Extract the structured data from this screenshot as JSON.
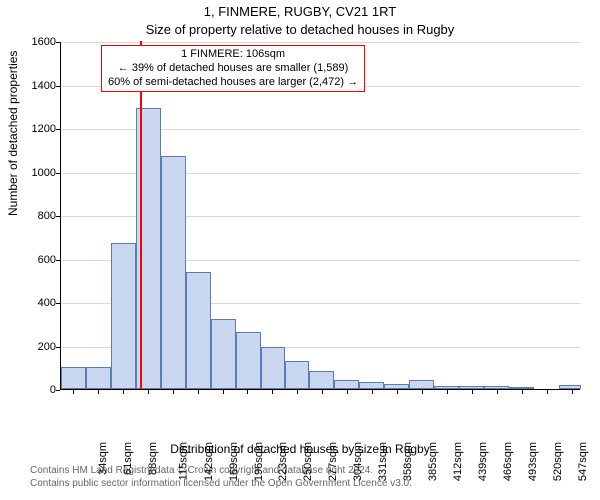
{
  "chart": {
    "type": "histogram",
    "title_line1": "1, FINMERE, RUGBY, CV21 1RT",
    "title_line2": "Size of property relative to detached houses in Rugby",
    "y_axis_label": "Number of detached properties",
    "x_axis_label": "Distribution of detached houses by size in Rugby",
    "title_fontsize": 13,
    "axis_label_fontsize": 12,
    "tick_fontsize": 11,
    "background_color": "#ffffff",
    "grid_color": "#d9d9d9",
    "bar_fill": "#c9d8f0",
    "bar_border": "#5b7bb5",
    "bar_border_width": 1,
    "vline_color": "#ff0000",
    "vline_width": 2,
    "x_min": 20,
    "x_max": 583,
    "x_tick_start": 34,
    "x_tick_step": 27,
    "x_tick_count": 21,
    "x_tick_suffix": "sqm",
    "y_min": 0,
    "y_max": 1600,
    "y_tick_step": 200,
    "bin_width_px_each": null,
    "bin_edges_sqm": [
      20,
      47,
      74,
      101,
      128,
      155,
      182,
      209,
      236,
      262,
      289,
      316,
      343,
      370,
      397,
      424,
      451,
      478,
      505,
      532,
      559,
      583
    ],
    "bin_heights": [
      100,
      100,
      670,
      1290,
      1070,
      540,
      320,
      260,
      195,
      130,
      85,
      40,
      30,
      25,
      40,
      15,
      15,
      15,
      5,
      0,
      20
    ],
    "vline_x_sqm": 106,
    "annotation": {
      "border_color": "#ff0000",
      "background": "#ffffff",
      "fontsize": 11,
      "line1": "1 FINMERE: 106sqm",
      "line2": "← 39% of detached houses are smaller (1,589)",
      "line3": "60% of semi-detached houses are larger (2,472) →"
    },
    "footer": {
      "color": "#666666",
      "fontsize": 10,
      "line1": "Contains HM Land Registry data © Crown copyright and database right 2024.",
      "line2": "Contains public sector information licensed under the Open Government Licence v3.0."
    }
  }
}
